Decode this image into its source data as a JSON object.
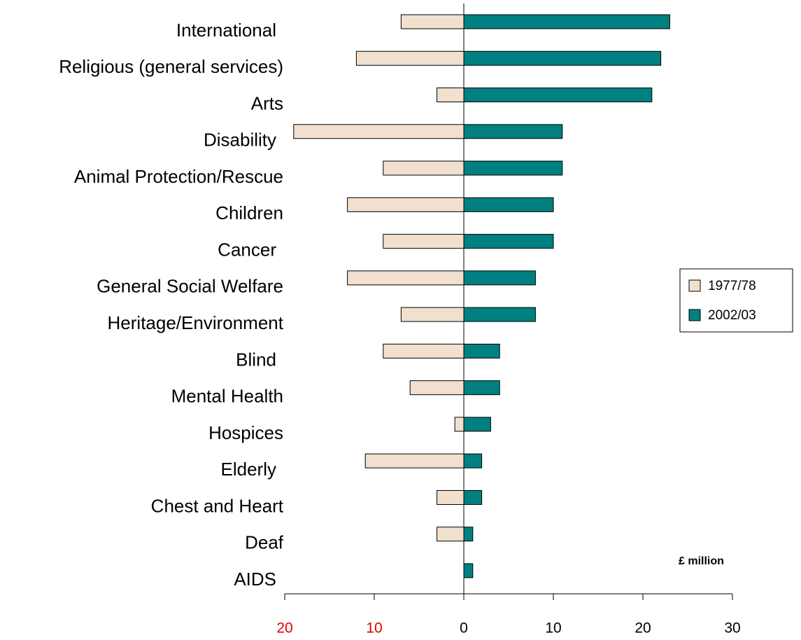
{
  "chart_data": {
    "type": "bar",
    "orientation": "horizontal",
    "categories": [
      "International",
      "Religious (general services)",
      "Arts",
      "Disability",
      "Animal Protection/Rescue",
      "Children",
      "Cancer",
      "General Social Welfare",
      "Heritage/Environment",
      "Blind",
      "Mental Health",
      "Hospices",
      "Elderly",
      "Chest and Heart",
      "Deaf",
      "AIDS"
    ],
    "series": [
      {
        "name": "1977/78",
        "color": "#f2e0cf",
        "values": [
          -7,
          -12,
          -3,
          -19,
          -9,
          -13,
          -9,
          -13,
          -7,
          -9,
          -6,
          -1,
          -11,
          -3,
          -3,
          null
        ]
      },
      {
        "name": "2002/03",
        "color": "#008080",
        "values": [
          23,
          22,
          21,
          11,
          11,
          10,
          10,
          8,
          8,
          4,
          4,
          3,
          2,
          2,
          1,
          1
        ]
      }
    ],
    "xlim": [
      -20,
      30
    ],
    "xticks": [
      {
        "value": -20,
        "label": "20"
      },
      {
        "value": -10,
        "label": "10"
      },
      0,
      10,
      20,
      30
    ],
    "negative_tick_color": "#e00000",
    "annotation": "£ million",
    "legend": "right"
  }
}
